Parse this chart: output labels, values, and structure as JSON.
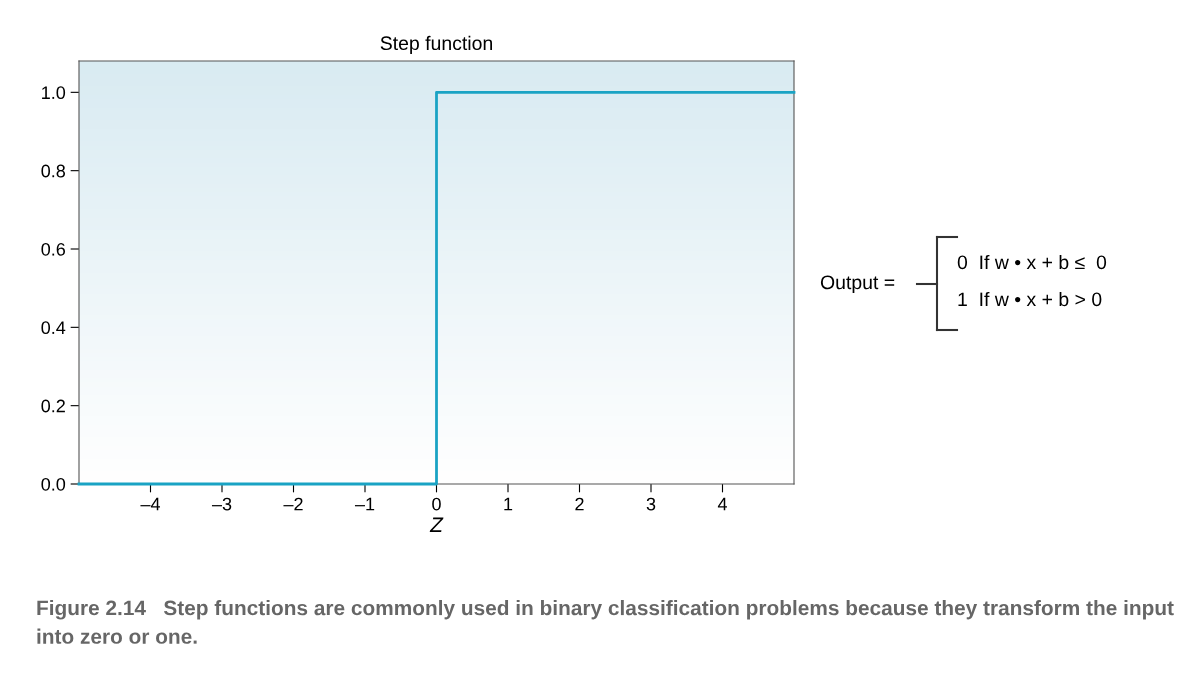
{
  "chart_data": {
    "type": "step",
    "title": "Step function",
    "xlabel": "Z",
    "x": [
      -5,
      0,
      5
    ],
    "series": [
      {
        "color": "#1aa3c4",
        "values": [
          0,
          1,
          1
        ]
      }
    ],
    "xlim": [
      -5,
      5
    ],
    "ylim": [
      0,
      1.08
    ],
    "xticks": [
      {
        "value": -4,
        "label": "–4"
      },
      {
        "value": -3,
        "label": "–3"
      },
      {
        "value": -2,
        "label": "–2"
      },
      {
        "value": -1,
        "label": "–1"
      },
      0,
      1,
      2,
      3,
      4
    ],
    "yticks": [
      {
        "value": 0,
        "label": "0.0"
      },
      {
        "value": 0.2,
        "label": "0.2"
      },
      {
        "value": 0.4,
        "label": "0.4"
      },
      {
        "value": 0.6,
        "label": "0.6"
      },
      {
        "value": 0.8,
        "label": "0.8"
      },
      {
        "value": 1,
        "label": "1.0"
      }
    ],
    "grid": false,
    "annotations": [
      "Output =",
      "0  If w • x + b ≤  0",
      "1  If w • x + b > 0",
      "Figure 2.14   Step functions are commonly used in binary classification problems because they transform the input into zero or one."
    ]
  }
}
